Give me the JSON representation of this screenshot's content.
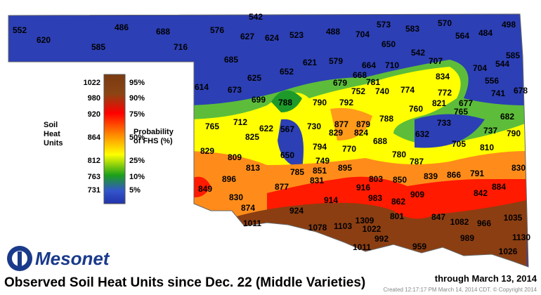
{
  "map": {
    "title": "Observed Soil Heat Units since Dec. 22 (Middle Varieties)",
    "date": "through March 13, 2014",
    "credit": "Created 12:17:17 PM March 14, 2014 CDT. © Copyright 2014",
    "logo": "Mesonet",
    "legend": {
      "units_label": "Soil Heat Units",
      "prob_label": "Probability of FHS (%)",
      "entries": [
        {
          "units": "1022",
          "percent": "95%"
        },
        {
          "units": "980",
          "percent": "90%"
        },
        {
          "units": "920",
          "percent": "75%"
        },
        {
          "units": "864",
          "percent": "50%"
        },
        {
          "units": "812",
          "percent": "25%"
        },
        {
          "units": "763",
          "percent": "10%"
        },
        {
          "units": "731",
          "percent": "5%"
        }
      ]
    },
    "stations": [
      "552",
      "620",
      "585",
      "486",
      "688",
      "716",
      "542",
      "576",
      "627",
      "624",
      "523",
      "488",
      "704",
      "573",
      "583",
      "570",
      "498",
      "564",
      "484",
      "650",
      "542",
      "585",
      "685",
      "621",
      "579",
      "664",
      "710",
      "707",
      "704",
      "544",
      "652",
      "625",
      "668",
      "834",
      "556",
      "614",
      "673",
      "679",
      "781",
      "752",
      "740",
      "774",
      "772",
      "741",
      "678",
      "699",
      "788",
      "790",
      "792",
      "821",
      "677",
      "760",
      "765",
      "682",
      "788",
      "712",
      "765",
      "622",
      "567",
      "730",
      "877",
      "879",
      "733",
      "829",
      "824",
      "737",
      "790",
      "825",
      "632",
      "688",
      "794",
      "770",
      "705",
      "810",
      "829",
      "809",
      "780",
      "650",
      "749",
      "787",
      "813",
      "830",
      "785",
      "851",
      "895",
      "896",
      "839",
      "866",
      "791",
      "831",
      "803",
      "850",
      "849",
      "877",
      "916",
      "909",
      "842",
      "884",
      "830",
      "914",
      "983",
      "862",
      "874",
      "924",
      "801",
      "847",
      "1082",
      "966",
      "1035",
      "1011",
      "1078",
      "1103",
      "1309",
      "1022",
      "992",
      "989",
      "1130",
      "1011",
      "959",
      "1026"
    ]
  }
}
